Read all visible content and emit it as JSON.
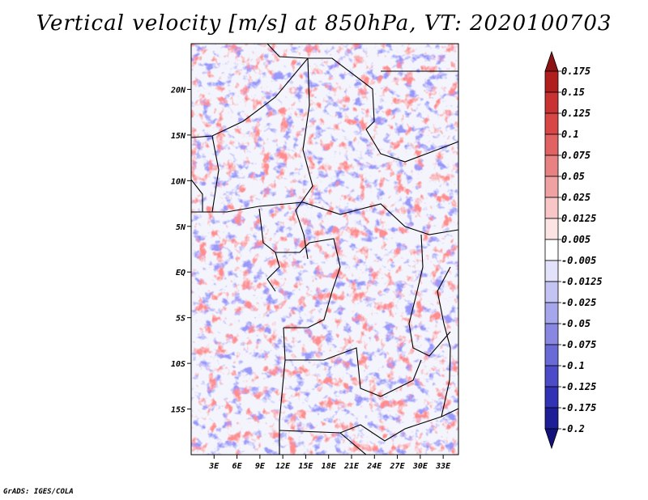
{
  "chart_data": {
    "type": "heatmap",
    "title": "Vertical velocity [m/s] at 850hPa, VT: 2020100703",
    "xlabel": "",
    "ylabel": "",
    "x_range": [
      0,
      35
    ],
    "y_range": [
      -20,
      25
    ],
    "x_ticks": [
      3,
      6,
      9,
      12,
      15,
      18,
      21,
      24,
      27,
      30,
      33
    ],
    "x_tick_labels": [
      "3E",
      "6E",
      "9E",
      "12E",
      "15E",
      "18E",
      "21E",
      "24E",
      "27E",
      "30E",
      "33E"
    ],
    "y_ticks": [
      20,
      15,
      10,
      5,
      0,
      -5,
      -10,
      -15
    ],
    "y_tick_labels": [
      "20N",
      "15N",
      "10N",
      "5N",
      "EQ",
      "5S",
      "10S",
      "15S"
    ],
    "colorbar": {
      "levels": [
        "0.175",
        "0.15",
        "0.125",
        "0.1",
        "0.075",
        "0.05",
        "0.025",
        "0.0125",
        "0.005",
        "-0.005",
        "-0.0125",
        "-0.025",
        "-0.05",
        "-0.075",
        "-0.1",
        "-0.125",
        "-0.175",
        "-0.2"
      ],
      "colors": [
        "#8c1414",
        "#b01e1e",
        "#c83232",
        "#d84646",
        "#e06262",
        "#e88282",
        "#f0a2a2",
        "#f8c6c6",
        "#fde4e4",
        "#ffffff",
        "#e2e2fb",
        "#c4c4f4",
        "#a6a6ec",
        "#8888e2",
        "#6a6ad6",
        "#4c4cc8",
        "#3232b4",
        "#1e1e96",
        "#12127a"
      ]
    }
  },
  "credit": "GrADS: IGES/COLA"
}
